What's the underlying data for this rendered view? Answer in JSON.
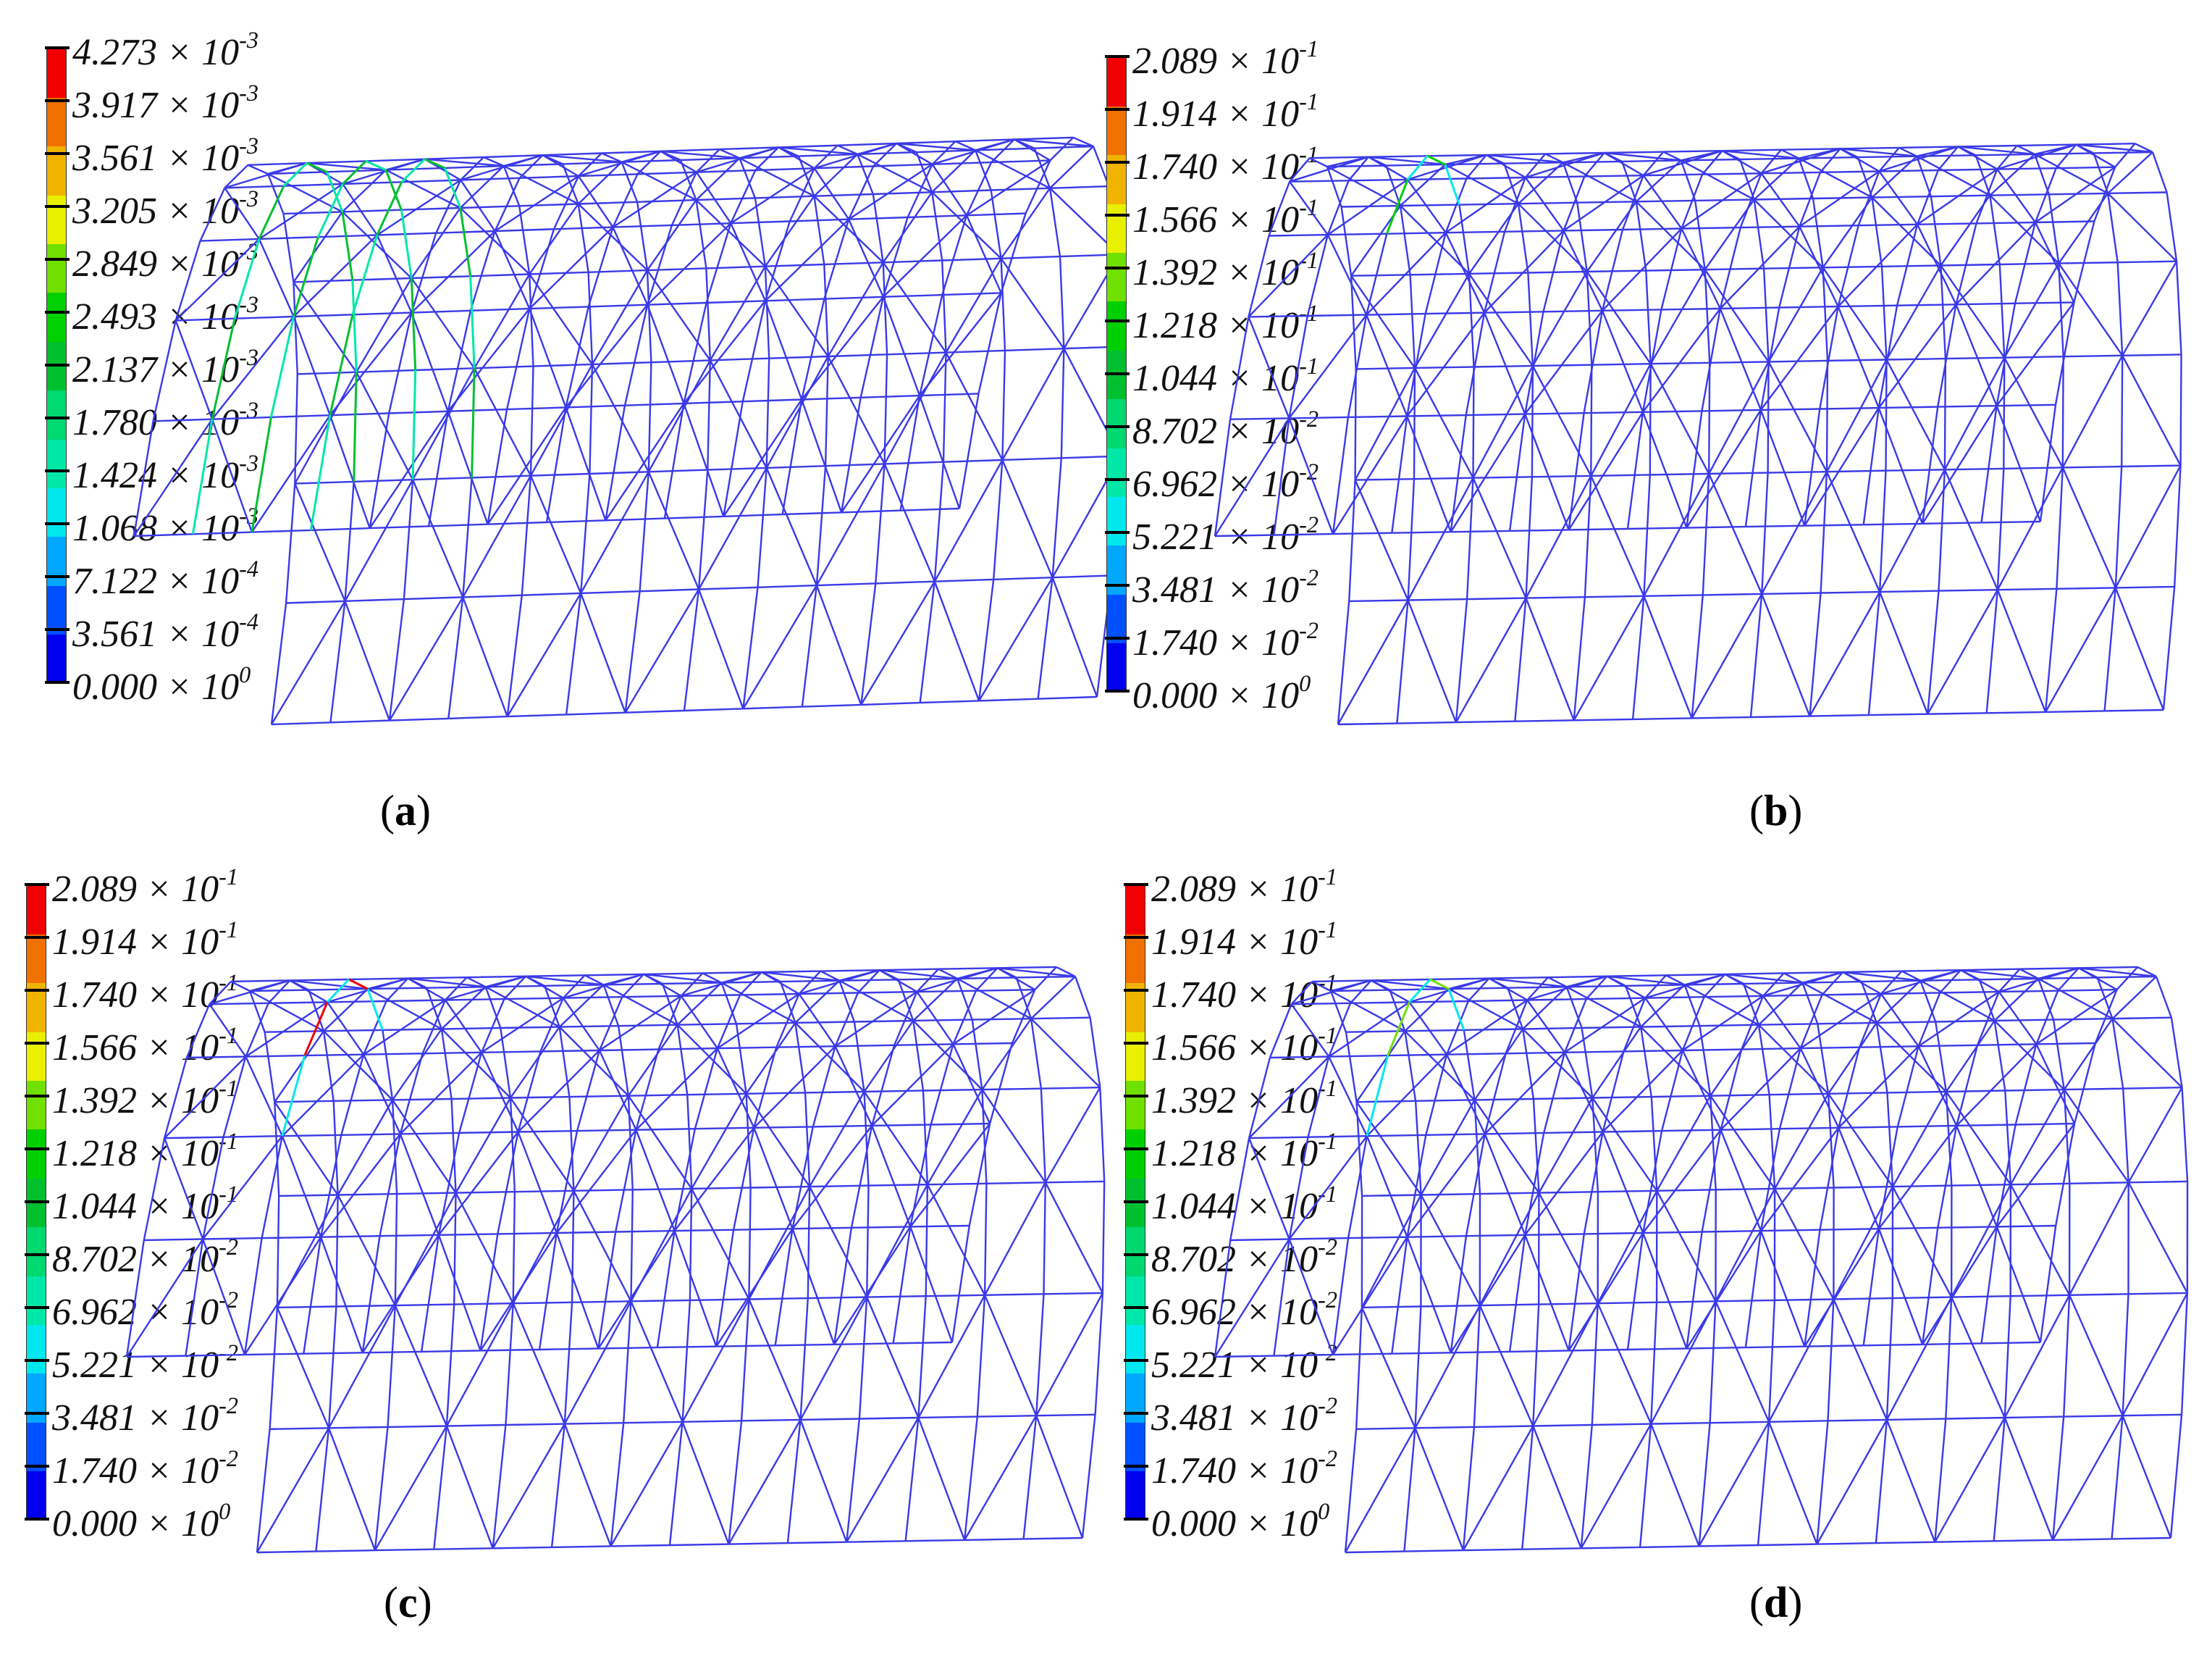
{
  "colorscale": [
    "#0000ee",
    "#0050ff",
    "#00a8ff",
    "#00e8ee",
    "#00e8a8",
    "#00d870",
    "#00c030",
    "#00d000",
    "#70e000",
    "#e8f000",
    "#f0b400",
    "#f07000",
    "#f00000"
  ],
  "mesh_color": "#3a3ae8",
  "panels": [
    {
      "id": "a",
      "caption_label": "a",
      "ticks": [
        {
          "m": "4.273",
          "e": "-3"
        },
        {
          "m": "3.917",
          "e": "-3"
        },
        {
          "m": "3.561",
          "e": "-3"
        },
        {
          "m": "3.205",
          "e": "-3"
        },
        {
          "m": "2.849",
          "e": "-3"
        },
        {
          "m": "2.493",
          "e": "-3"
        },
        {
          "m": "2.137",
          "e": "-3"
        },
        {
          "m": "1.780",
          "e": "-3"
        },
        {
          "m": "1.424",
          "e": "-3"
        },
        {
          "m": "1.068",
          "e": "-3"
        },
        {
          "m": "7.122",
          "e": "-4"
        },
        {
          "m": "3.561",
          "e": "-4"
        },
        {
          "m": "0.000",
          "e": "0"
        }
      ]
    },
    {
      "id": "b",
      "caption_label": "b",
      "ticks": [
        {
          "m": "2.089",
          "e": "-1"
        },
        {
          "m": "1.914",
          "e": "-1"
        },
        {
          "m": "1.740",
          "e": "-1"
        },
        {
          "m": "1.566",
          "e": "-1"
        },
        {
          "m": "1.392",
          "e": "-1"
        },
        {
          "m": "1.218",
          "e": "-1"
        },
        {
          "m": "1.044",
          "e": "-1"
        },
        {
          "m": "8.702",
          "e": "-2"
        },
        {
          "m": "6.962",
          "e": "-2"
        },
        {
          "m": "5.221",
          "e": "-2"
        },
        {
          "m": "3.481",
          "e": "-2"
        },
        {
          "m": "1.740",
          "e": "-2"
        },
        {
          "m": "0.000",
          "e": "0"
        }
      ]
    },
    {
      "id": "c",
      "caption_label": "c",
      "ticks": [
        {
          "m": "2.089",
          "e": "-1"
        },
        {
          "m": "1.914",
          "e": "-1"
        },
        {
          "m": "1.740",
          "e": "-1"
        },
        {
          "m": "1.566",
          "e": "-1"
        },
        {
          "m": "1.392",
          "e": "-1"
        },
        {
          "m": "1.218",
          "e": "-1"
        },
        {
          "m": "1.044",
          "e": "-1"
        },
        {
          "m": "8.702",
          "e": "-2"
        },
        {
          "m": "6.962",
          "e": "-2"
        },
        {
          "m": "5.221",
          "e": "-2"
        },
        {
          "m": "3.481",
          "e": "-2"
        },
        {
          "m": "1.740",
          "e": "-2"
        },
        {
          "m": "0.000",
          "e": "0"
        }
      ]
    },
    {
      "id": "d",
      "caption_label": "d",
      "ticks": [
        {
          "m": "2.089",
          "e": "-1"
        },
        {
          "m": "1.914",
          "e": "-1"
        },
        {
          "m": "1.740",
          "e": "-1"
        },
        {
          "m": "1.566",
          "e": "-1"
        },
        {
          "m": "1.392",
          "e": "-1"
        },
        {
          "m": "1.218",
          "e": "-1"
        },
        {
          "m": "1.044",
          "e": "-1"
        },
        {
          "m": "8.702",
          "e": "-2"
        },
        {
          "m": "6.962",
          "e": "-2"
        },
        {
          "m": "5.221",
          "e": "-2"
        },
        {
          "m": "3.481",
          "e": "-2"
        },
        {
          "m": "1.740",
          "e": "-2"
        },
        {
          "m": "0.000",
          "e": "0"
        }
      ]
    }
  ],
  "times_sign": "×",
  "base": "10",
  "caption_open": "(",
  "caption_close": ")"
}
